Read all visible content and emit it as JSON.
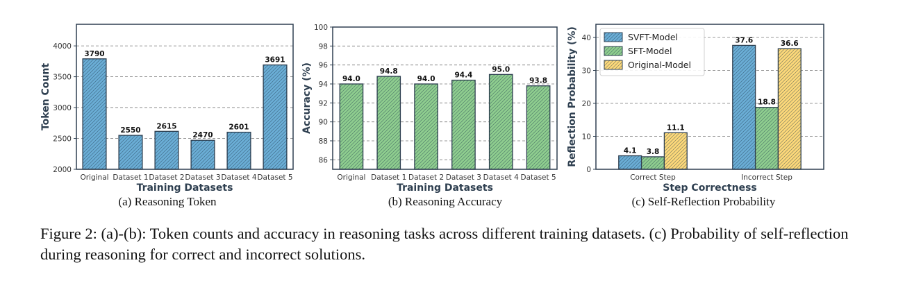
{
  "chart_data": [
    {
      "type": "bar",
      "title": "",
      "xlabel": "Training Datasets",
      "ylabel": "Token Count",
      "categories": [
        "Original",
        "Dataset 1",
        "Dataset 2",
        "Dataset 3",
        "Dataset 4",
        "Dataset 5"
      ],
      "values": [
        3790,
        2550,
        2615,
        2470,
        2601,
        3691
      ],
      "value_labels": [
        "3790",
        "2550",
        "2615",
        "2470",
        "2601",
        "3691"
      ],
      "ylim": [
        2000,
        4350
      ],
      "yticks": [
        2000,
        2500,
        3000,
        3500,
        4000
      ],
      "grid": true,
      "color": "#6baed6",
      "hatch": "diagonal"
    },
    {
      "type": "bar",
      "title": "",
      "xlabel": "Training Datasets",
      "ylabel": "Accuracy (%)",
      "categories": [
        "Original",
        "Dataset 1",
        "Dataset 2",
        "Dataset 3",
        "Dataset 4",
        "Dataset 5"
      ],
      "values": [
        94.0,
        94.8,
        94.0,
        94.4,
        95.0,
        93.8
      ],
      "value_labels": [
        "94.0",
        "94.8",
        "94.0",
        "94.4",
        "95.0",
        "93.8"
      ],
      "ylim": [
        85,
        100
      ],
      "yticks": [
        86,
        88,
        90,
        92,
        94,
        96,
        98,
        100
      ],
      "grid": true,
      "color": "#8fce8f",
      "hatch": "diagonal"
    },
    {
      "type": "bar",
      "title": "",
      "xlabel": "Step Correctness",
      "ylabel": "Reflection Probability (%)",
      "categories": [
        "Correct Step",
        "Incorrect Step"
      ],
      "series": [
        {
          "name": "SVFT-Model",
          "values": [
            4.1,
            37.6
          ],
          "value_labels": [
            "4.1",
            "37.6"
          ],
          "color": "#6baed6"
        },
        {
          "name": "SFT-Model",
          "values": [
            3.8,
            18.8
          ],
          "value_labels": [
            "3.8",
            "18.8"
          ],
          "color": "#8fce8f"
        },
        {
          "name": "Original-Model",
          "values": [
            11.1,
            36.6
          ],
          "value_labels": [
            "11.1",
            "36.6"
          ],
          "color": "#fdd97a"
        }
      ],
      "ylim": [
        0,
        44
      ],
      "yticks": [
        0,
        10,
        20,
        30,
        40
      ],
      "grid": true,
      "legend": "top-left",
      "hatch": "diagonal"
    }
  ],
  "captions": {
    "a": "(a) Reasoning Token",
    "b": "(b) Reasoning Accuracy",
    "c": "(c) Self-Reflection Probability"
  },
  "figure_caption": "Figure 2: (a)-(b): Token counts and accuracy in reasoning tasks across different training datasets. (c) Probability of self-reflection during reasoning for correct and incorrect solutions."
}
